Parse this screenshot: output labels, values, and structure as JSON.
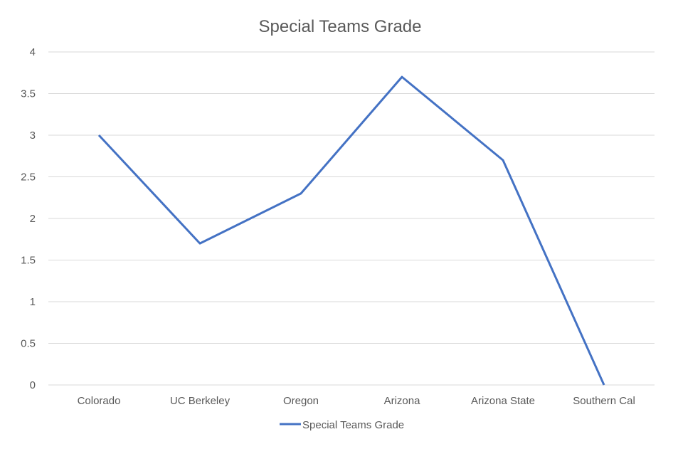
{
  "chart_data": {
    "type": "line",
    "title": "Special Teams Grade",
    "xlabel": "",
    "ylabel": "",
    "categories": [
      "Colorado",
      "UC Berkeley",
      "Oregon",
      "Arizona",
      "Arizona State",
      "Southern Cal"
    ],
    "series": [
      {
        "name": "Special Teams Grade",
        "color": "#4472c4",
        "values": [
          3.0,
          1.7,
          2.3,
          3.7,
          2.7,
          0
        ]
      }
    ],
    "ylim": [
      0,
      4
    ],
    "yticks": [
      "0",
      "0.5",
      "1",
      "1.5",
      "2",
      "2.5",
      "3",
      "3.5",
      "4"
    ],
    "grid": true,
    "legend_position": "bottom"
  }
}
